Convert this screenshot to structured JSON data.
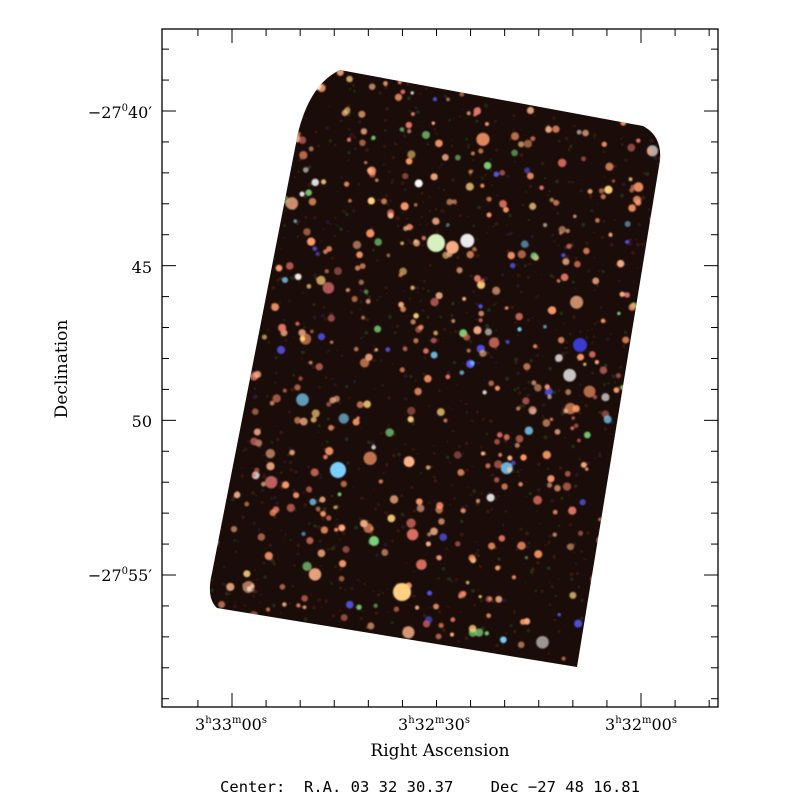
{
  "plot": {
    "x_axis_title": "Right Ascension",
    "y_axis_title": "Declination",
    "x_ticks": [
      {
        "h": "3",
        "hu": "h",
        "m": "33",
        "mu": "m",
        "s": "00",
        "su": "s"
      },
      {
        "h": "3",
        "hu": "h",
        "m": "32",
        "mu": "m",
        "s": "30",
        "su": "s"
      },
      {
        "h": "3",
        "hu": "h",
        "m": "32",
        "mu": "m",
        "s": "00",
        "su": "s"
      }
    ],
    "y_ticks": [
      {
        "pre": "−27",
        "sup": "0",
        "post": "40′"
      },
      {
        "pre": "45",
        "sup": "",
        "post": ""
      },
      {
        "pre": "50",
        "sup": "",
        "post": ""
      },
      {
        "pre": "−27",
        "sup": "0",
        "post": "55′"
      }
    ],
    "center_text": "Center:  R.A. 03 32 30.37    Dec −27 48 16.81"
  },
  "image": {
    "description_colors": {
      "background": "#1a0c08",
      "source_palette": [
        "#ff9a6a",
        "#ffb48a",
        "#f07a6a",
        "#ffd37a",
        "#7ad07a",
        "#5a5aff",
        "#7ad0ff",
        "#ffffff",
        "#c06060"
      ]
    }
  }
}
